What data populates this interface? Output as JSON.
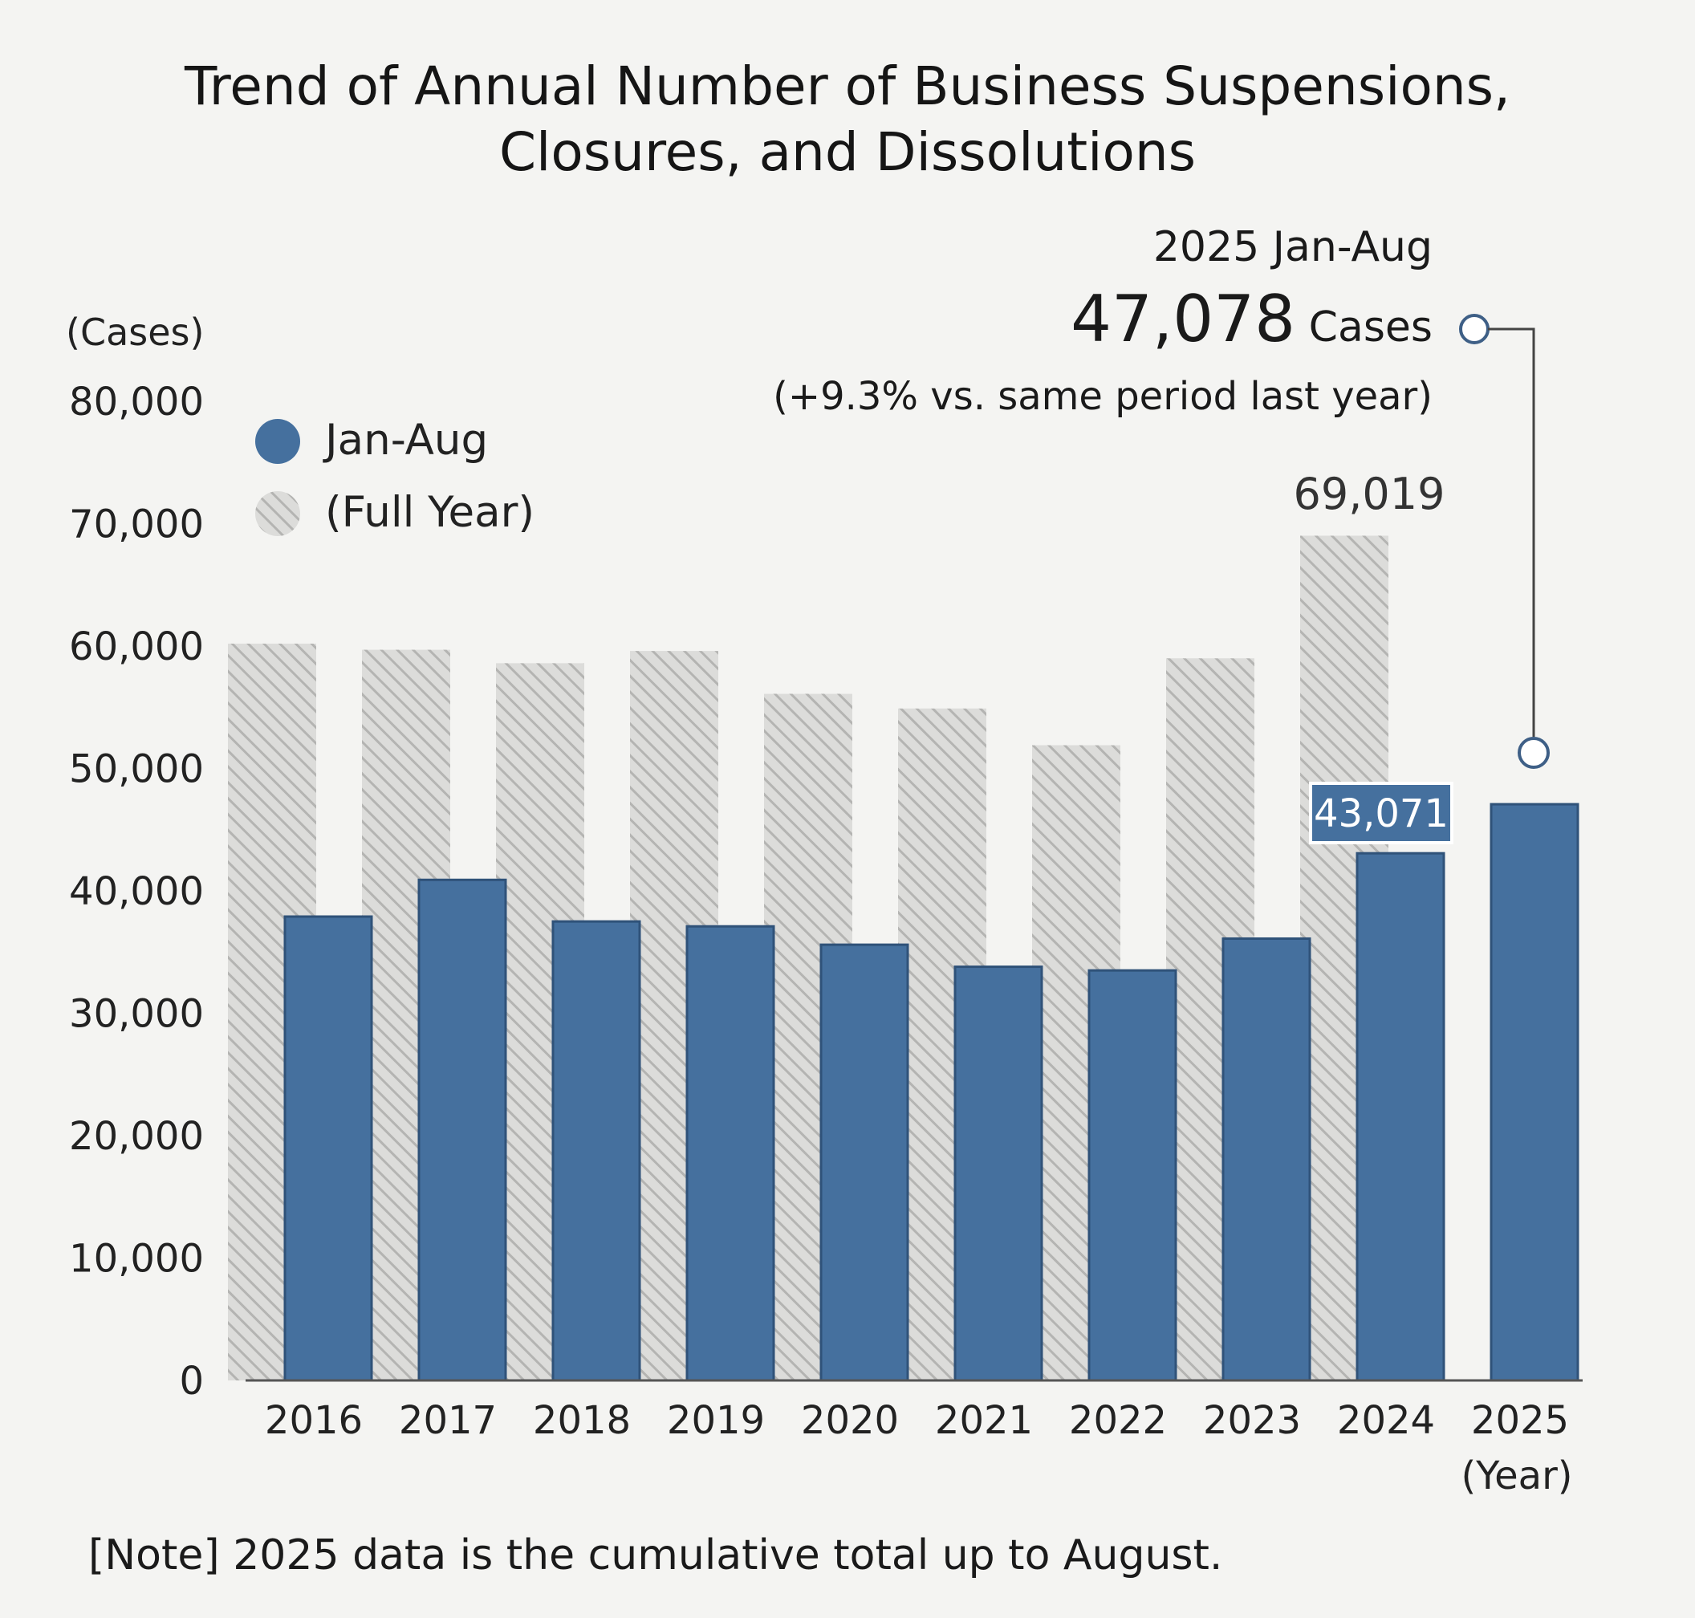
{
  "chart_data": {
    "type": "bar",
    "title_lines": [
      "Trend of Annual Number of Business Suspensions,",
      "Closures, and Dissolutions"
    ],
    "ylabel": "(Cases)",
    "xlabel": "(Year)",
    "ylim": [
      0,
      80000
    ],
    "yticks": [
      0,
      10000,
      20000,
      30000,
      40000,
      50000,
      60000,
      70000,
      80000
    ],
    "ytick_labels": [
      "0",
      "10,000",
      "20,000",
      "30,000",
      "40,000",
      "50,000",
      "60,000",
      "70,000",
      "80,000"
    ],
    "categories": [
      "2016",
      "2017",
      "2018",
      "2019",
      "2020",
      "2021",
      "2022",
      "2023",
      "2024",
      "2025"
    ],
    "series": [
      {
        "name": "Jan-Aug",
        "color": "#45709e",
        "values": [
          37900,
          40900,
          37500,
          37100,
          35600,
          33800,
          33500,
          36100,
          43071,
          47078
        ]
      },
      {
        "name": "(Full Year)",
        "color": "#c9c9c9",
        "pattern": "diagonal-hatch",
        "values": [
          60200,
          59700,
          58600,
          59600,
          56100,
          54900,
          51900,
          59000,
          69019,
          null
        ]
      }
    ],
    "data_labels": {
      "full_2024": "69,019",
      "jan_aug_2024": "43,071"
    },
    "callout": {
      "line1": "2025 Jan-Aug",
      "value": "47,078",
      "unit": "Cases",
      "change": "(+9.3% vs. same period last year)"
    },
    "legend_position": "top-left",
    "grid": false
  },
  "note": "[Note] 2025 data is the cumulative total up to August."
}
